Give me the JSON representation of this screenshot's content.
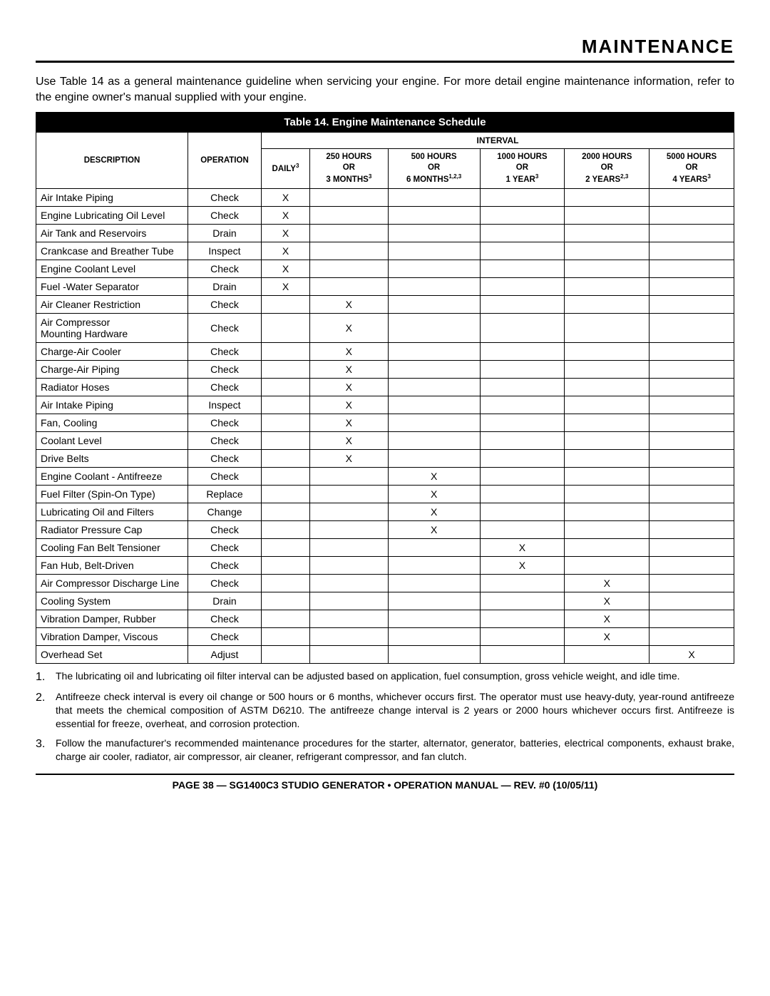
{
  "section_title": "MAINTENANCE",
  "intro_text": "Use Table 14 as a general maintenance guideline when servicing your engine. For more detail engine maintenance information, refer to the engine owner's manual supplied with your engine.",
  "table": {
    "caption": "Table 14. Engine Maintenance Schedule",
    "headers": {
      "description": "DESCRIPTION",
      "operation": "OPERATION",
      "interval": "INTERVAL",
      "daily": "DAILY",
      "daily_sup": "3",
      "h250_l1": "250 HOURS",
      "h250_l2": "OR",
      "h250_l3": "3 MONTHS",
      "h250_sup": "3",
      "h500_l1": "500 HOURS",
      "h500_l2": "OR",
      "h500_l3": "6 MONTHS",
      "h500_sup": "1,2,3",
      "h1000_l1": "1000 HOURS",
      "h1000_l2": "OR",
      "h1000_l3": "1 YEAR",
      "h1000_sup": "3",
      "h2000_l1": "2000 HOURS",
      "h2000_l2": "OR",
      "h2000_l3": "2 YEARS",
      "h2000_sup": "2,3",
      "h5000_l1": "5000 HOURS",
      "h5000_l2": "OR",
      "h5000_l3": "4 YEARS",
      "h5000_sup": "3"
    },
    "rows": [
      {
        "desc": "Air Intake Piping",
        "op": "Check",
        "marks": [
          "X",
          "",
          "",
          "",
          "",
          ""
        ]
      },
      {
        "desc": "Engine Lubricating Oil Level",
        "op": "Check",
        "marks": [
          "X",
          "",
          "",
          "",
          "",
          ""
        ]
      },
      {
        "desc": "Air Tank and Reservoirs",
        "op": "Drain",
        "marks": [
          "X",
          "",
          "",
          "",
          "",
          ""
        ]
      },
      {
        "desc": "Crankcase and Breather Tube",
        "op": "Inspect",
        "marks": [
          "X",
          "",
          "",
          "",
          "",
          ""
        ]
      },
      {
        "desc": "Engine Coolant Level",
        "op": "Check",
        "marks": [
          "X",
          "",
          "",
          "",
          "",
          ""
        ]
      },
      {
        "desc": "Fuel -Water Separator",
        "op": "Drain",
        "marks": [
          "X",
          "",
          "",
          "",
          "",
          ""
        ]
      },
      {
        "desc": "Air Cleaner Restriction",
        "op": "Check",
        "marks": [
          "",
          "X",
          "",
          "",
          "",
          ""
        ]
      },
      {
        "desc": "Air Compressor\nMounting Hardware",
        "op": "Check",
        "marks": [
          "",
          "X",
          "",
          "",
          "",
          ""
        ]
      },
      {
        "desc": "Charge-Air Cooler",
        "op": "Check",
        "marks": [
          "",
          "X",
          "",
          "",
          "",
          ""
        ]
      },
      {
        "desc": "Charge-Air Piping",
        "op": "Check",
        "marks": [
          "",
          "X",
          "",
          "",
          "",
          ""
        ]
      },
      {
        "desc": "Radiator Hoses",
        "op": "Check",
        "marks": [
          "",
          "X",
          "",
          "",
          "",
          ""
        ]
      },
      {
        "desc": "Air Intake Piping",
        "op": "Inspect",
        "marks": [
          "",
          "X",
          "",
          "",
          "",
          ""
        ]
      },
      {
        "desc": "Fan, Cooling",
        "op": "Check",
        "marks": [
          "",
          "X",
          "",
          "",
          "",
          ""
        ]
      },
      {
        "desc": "Coolant Level",
        "op": "Check",
        "marks": [
          "",
          "X",
          "",
          "",
          "",
          ""
        ]
      },
      {
        "desc": "Drive Belts",
        "op": "Check",
        "marks": [
          "",
          "X",
          "",
          "",
          "",
          ""
        ]
      },
      {
        "desc": "Engine Coolant - Antifreeze",
        "op": "Check",
        "marks": [
          "",
          "",
          "X",
          "",
          "",
          ""
        ]
      },
      {
        "desc": "Fuel Filter (Spin-On Type)",
        "op": "Replace",
        "marks": [
          "",
          "",
          "X",
          "",
          "",
          ""
        ]
      },
      {
        "desc": "Lubricating Oil and Filters",
        "op": "Change",
        "marks": [
          "",
          "",
          "X",
          "",
          "",
          ""
        ]
      },
      {
        "desc": "Radiator Pressure Cap",
        "op": "Check",
        "marks": [
          "",
          "",
          "X",
          "",
          "",
          ""
        ]
      },
      {
        "desc": "Cooling Fan Belt Tensioner",
        "op": "Check",
        "marks": [
          "",
          "",
          "",
          "X",
          "",
          ""
        ]
      },
      {
        "desc": "Fan Hub, Belt-Driven",
        "op": "Check",
        "marks": [
          "",
          "",
          "",
          "X",
          "",
          ""
        ]
      },
      {
        "desc": "Air Compressor Discharge Line",
        "op": "Check",
        "marks": [
          "",
          "",
          "",
          "",
          "X",
          ""
        ]
      },
      {
        "desc": "Cooling System",
        "op": "Drain",
        "marks": [
          "",
          "",
          "",
          "",
          "X",
          ""
        ]
      },
      {
        "desc": "Vibration Damper, Rubber",
        "op": "Check",
        "marks": [
          "",
          "",
          "",
          "",
          "X",
          ""
        ]
      },
      {
        "desc": "Vibration Damper, Viscous",
        "op": "Check",
        "marks": [
          "",
          "",
          "",
          "",
          "X",
          ""
        ]
      },
      {
        "desc": "Overhead Set",
        "op": "Adjust",
        "marks": [
          "",
          "",
          "",
          "",
          "",
          "X"
        ]
      }
    ]
  },
  "notes": [
    {
      "num": "1.",
      "text": "The lubricating oil and lubricating oil filter interval can be adjusted based on application, fuel consumption, gross vehicle weight, and idle time."
    },
    {
      "num": "2.",
      "text": "Antifreeze check interval is every oil change or 500 hours or 6 months, whichever occurs first. The operator must use heavy-duty, year-round antifreeze that meets the chemical composition of ASTM D6210. The antifreeze change interval is 2 years or 2000 hours whichever occurs first. Antifreeze is essential for freeze, overheat, and corrosion protection."
    },
    {
      "num": "3.",
      "text": "Follow the manufacturer's recommended maintenance procedures for the starter, alternator, generator, batteries, electrical components, exhaust brake, charge air cooler, radiator, air compressor, air cleaner, refrigerant compressor, and fan clutch."
    }
  ],
  "footer": "PAGE 38 — SG1400C3 STUDIO GENERATOR • OPERATION MANUAL — REV. #0 (10/05/11)"
}
